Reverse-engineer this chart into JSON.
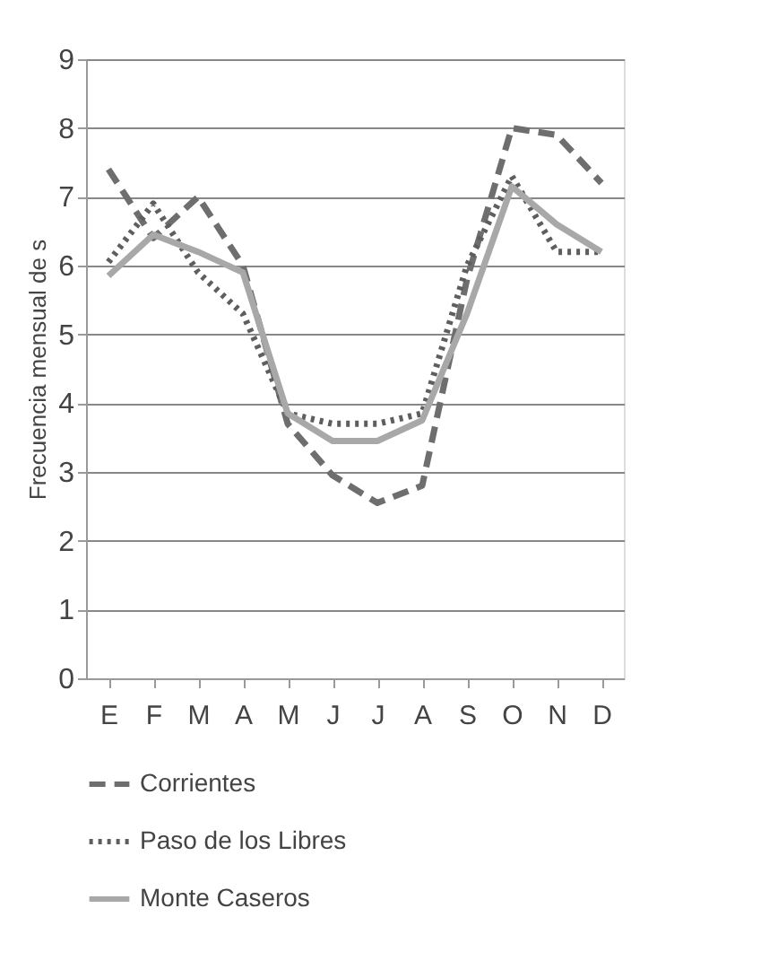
{
  "chart_data": {
    "type": "line",
    "ylabel": "Frecuencia mensual de s",
    "categories": [
      "E",
      "F",
      "M",
      "A",
      "M",
      "J",
      "J",
      "A",
      "S",
      "O",
      "N",
      "D"
    ],
    "series": [
      {
        "name": "Corrientes",
        "color": "#6e6e6e",
        "line_style": "dashed",
        "values": [
          7.4,
          6.4,
          7.0,
          6.0,
          3.7,
          2.95,
          2.55,
          2.8,
          5.8,
          8.0,
          7.9,
          7.2
        ]
      },
      {
        "name": "Paso de los Libres",
        "color": "#5e5e5e",
        "line_style": "dotted",
        "values": [
          6.05,
          6.9,
          5.9,
          5.3,
          3.85,
          3.7,
          3.7,
          3.85,
          6.0,
          7.3,
          6.2,
          6.2
        ]
      },
      {
        "name": "Monte Caseros",
        "color": "#a8a8a8",
        "line_style": "solid",
        "values": [
          5.85,
          6.45,
          6.2,
          5.9,
          3.85,
          3.45,
          3.45,
          3.75,
          5.3,
          7.15,
          6.6,
          6.2
        ]
      }
    ],
    "ylim": [
      0,
      9
    ],
    "yticks": [
      0,
      1,
      2,
      3,
      4,
      5,
      6,
      7,
      8,
      9
    ],
    "grid": "y",
    "legend": "bottom",
    "marker": "none"
  }
}
